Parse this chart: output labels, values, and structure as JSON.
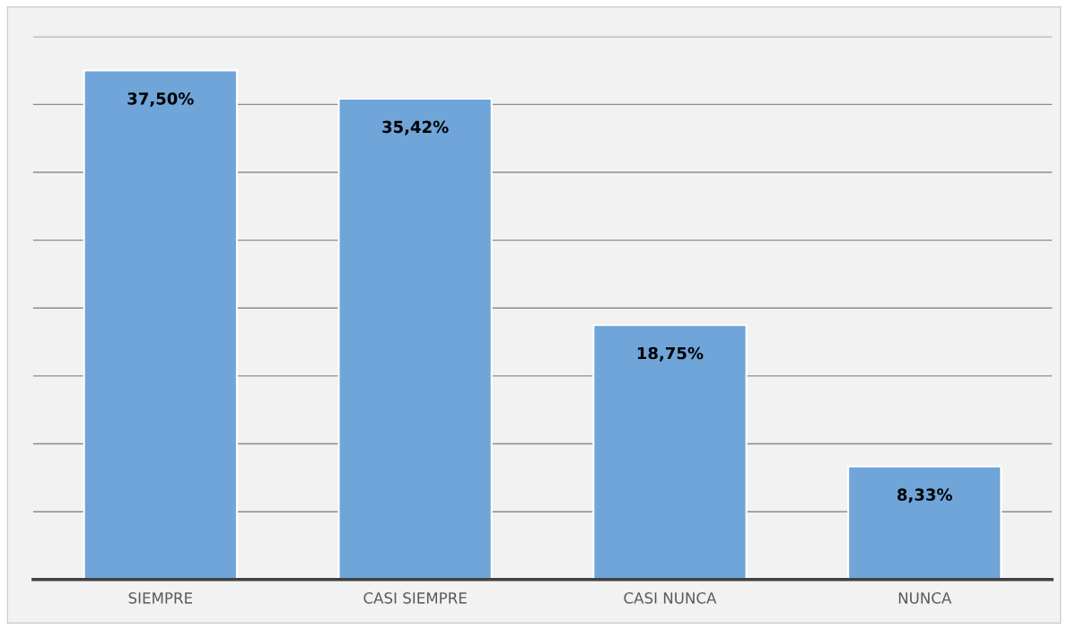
{
  "chart_data": {
    "type": "bar",
    "categories": [
      "SIEMPRE",
      "CASI SIEMPRE",
      "CASI NUNCA",
      "NUNCA"
    ],
    "values": [
      37.5,
      35.42,
      18.75,
      8.33
    ],
    "value_labels": [
      "37,50%",
      "35,42%",
      "18,75%",
      "8,33%"
    ],
    "color": "#6fa5d8",
    "ylim": [
      0,
      40
    ],
    "yticks": [
      0,
      5,
      10,
      15,
      20,
      25,
      30,
      35,
      40
    ],
    "tick_labels": "x",
    "grid": "y",
    "legend": false
  }
}
